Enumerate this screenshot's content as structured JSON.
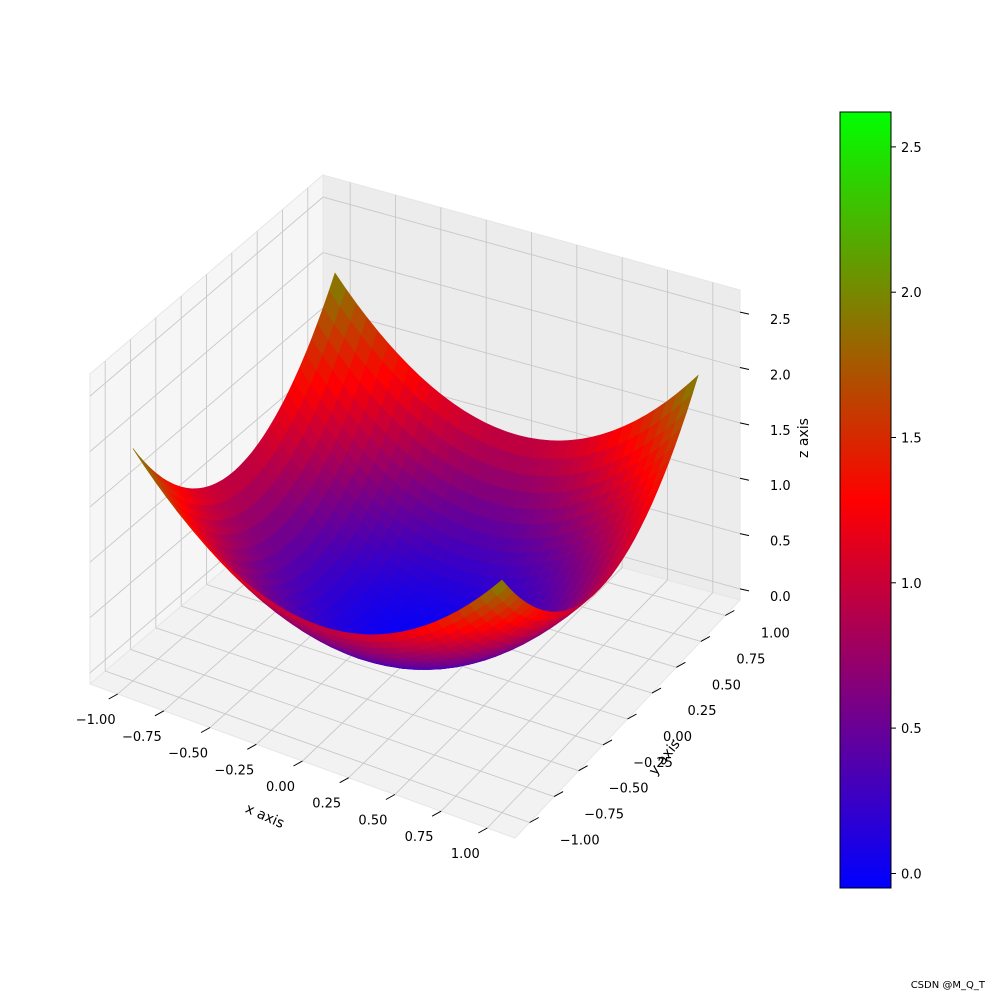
{
  "chart_data": {
    "type": "surface",
    "function": "z = x^2 + y^2",
    "x_range": [
      -1.15,
      1.15
    ],
    "y_range": [
      -1.15,
      1.15
    ],
    "xlabel": "x axis",
    "ylabel": "y axis",
    "zlabel": "z axis",
    "zlim": [
      -0.1,
      2.7
    ],
    "x_ticks": [
      -1.0,
      -0.75,
      -0.5,
      -0.25,
      0.0,
      0.25,
      0.5,
      0.75,
      1.0
    ],
    "y_ticks": [
      -1.0,
      -0.75,
      -0.5,
      -0.25,
      0.0,
      0.25,
      0.5,
      0.75,
      1.0
    ],
    "z_ticks": [
      0.0,
      0.5,
      1.0,
      1.5,
      2.0,
      2.5
    ],
    "x_tick_labels": [
      "−1.00",
      "−0.75",
      "−0.50",
      "−0.25",
      "0.00",
      "0.25",
      "0.50",
      "0.75",
      "1.00"
    ],
    "y_tick_labels": [
      "−1.00",
      "−0.75",
      "−0.50",
      "−0.25",
      "0.00",
      "0.25",
      "0.50",
      "0.75",
      "1.00"
    ],
    "z_tick_labels": [
      "0.0",
      "0.5",
      "1.0",
      "1.5",
      "2.0",
      "2.5"
    ],
    "grid": true,
    "colorbar": {
      "range": [
        -0.05,
        2.62
      ],
      "colormap": [
        "#0000ff",
        "#ff0000",
        "#00ff00"
      ],
      "ticks": [
        0.0,
        0.5,
        1.0,
        1.5,
        2.0,
        2.5
      ],
      "tick_labels": [
        "0.0",
        "0.5",
        "1.0",
        "1.5",
        "2.0",
        "2.5"
      ]
    }
  },
  "watermark": "CSDN @M_Q_T"
}
